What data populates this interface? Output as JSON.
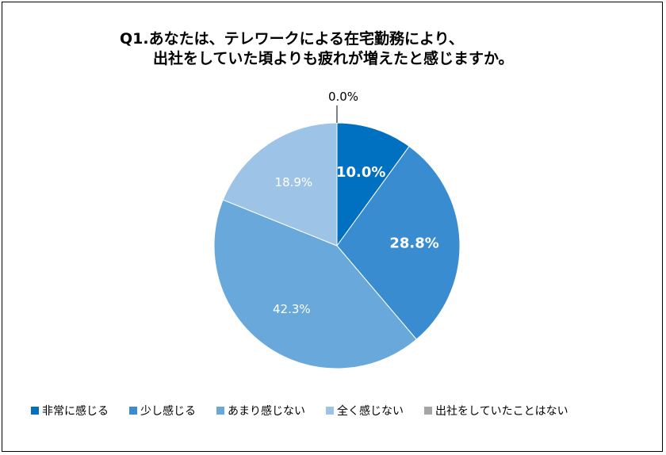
{
  "chart_data": {
    "type": "pie",
    "title_line1": "Q1.あなたは、テレワークによる在宅勤務により、",
    "title_line2": "出社をしていた頃よりも疲れが増えたと感じますか。",
    "categories": [
      "非常に感じる",
      "少し感じる",
      "あまり感じない",
      "全く感じない",
      "出社をしていたことはない"
    ],
    "values": [
      10.0,
      28.8,
      42.3,
      18.9,
      0.0
    ],
    "labels": [
      "10.0%",
      "28.8%",
      "42.3%",
      "18.9%",
      "0.0%"
    ],
    "colors": [
      "#0070C0",
      "#3A8CD0",
      "#69A8DA",
      "#9DC3E6",
      "#A5A5A5"
    ],
    "label_colors": [
      "#ffffff",
      "#ffffff",
      "#ffffff",
      "#ffffff",
      "#000000"
    ],
    "label_bold": [
      true,
      true,
      false,
      false,
      false
    ],
    "legend_position": "bottom",
    "start_angle": "top, clockwise"
  }
}
